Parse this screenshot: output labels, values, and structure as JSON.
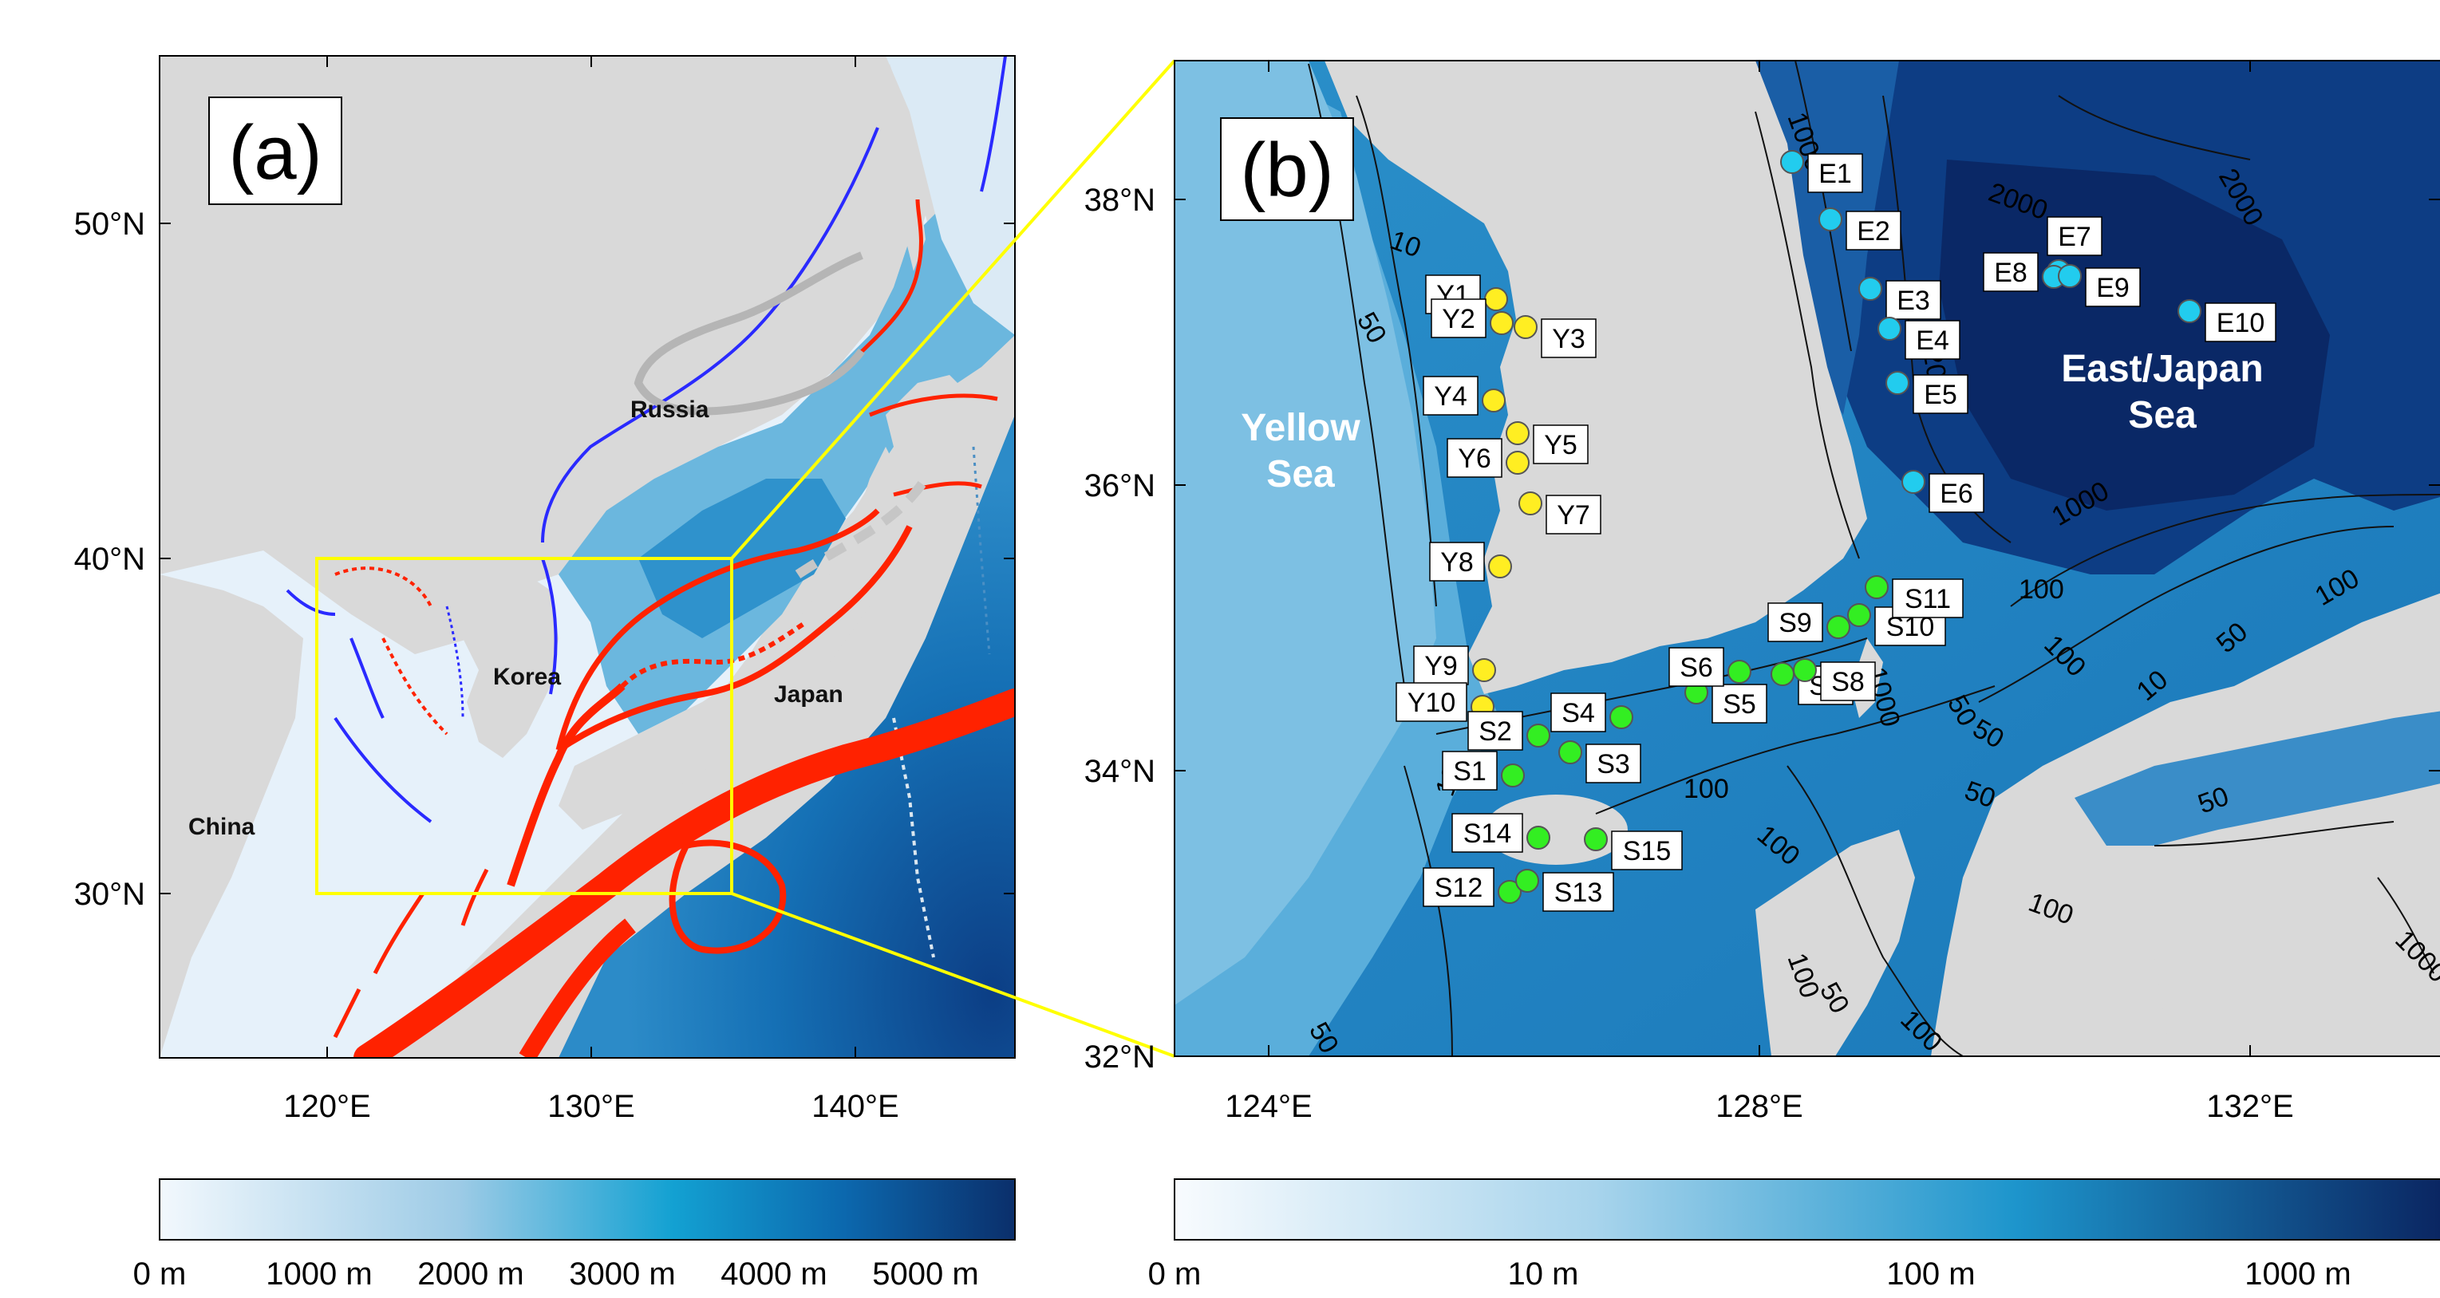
{
  "panel_a": {
    "label": "(a)",
    "lat_ticks": [
      "30°N",
      "40°N",
      "50°N"
    ],
    "lon_ticks": [
      "120°E",
      "130°E",
      "140°E"
    ],
    "region_labels": [
      "Russia",
      "Korea",
      "Japan",
      "China"
    ],
    "colorbar_ticks": [
      "0 m",
      "1000 m",
      "2000 m",
      "3000 m",
      "4000 m",
      "5000 m"
    ]
  },
  "panel_b": {
    "label": "(b)",
    "lat_ticks": [
      "32°N",
      "34°N",
      "36°N",
      "38°N"
    ],
    "lon_ticks": [
      "124°E",
      "128°E",
      "132°E"
    ],
    "sea_labels": [
      [
        "Yellow",
        "Sea"
      ],
      [
        "East/Japan",
        "Sea"
      ]
    ],
    "colorbar_ticks": [
      "0 m",
      "10 m",
      "100 m",
      "1000 m"
    ],
    "contour_labels": [
      "1000",
      "2000",
      "2000",
      "2000",
      "2000",
      "1000",
      "100",
      "1000",
      "10",
      "50",
      "100",
      "100",
      "50",
      "50",
      "100",
      "10",
      "50",
      "100",
      "1000",
      "50",
      "100",
      "50",
      "100",
      "100",
      "100",
      "50",
      "100",
      "50"
    ],
    "stations": {
      "Y": [
        "Y1",
        "Y2",
        "Y3",
        "Y4",
        "Y5",
        "Y6",
        "Y7",
        "Y8",
        "Y9",
        "Y10"
      ],
      "S": [
        "S1",
        "S2",
        "S3",
        "S4",
        "S5",
        "S6",
        "S7",
        "S8",
        "S9",
        "S10",
        "S11",
        "S12",
        "S13",
        "S14",
        "S15"
      ],
      "E": [
        "E1",
        "E2",
        "E3",
        "E4",
        "E5",
        "E6",
        "E7",
        "E8",
        "E9",
        "E10"
      ]
    }
  },
  "colors": {
    "land": "#d9d9d9",
    "warm_current": "#ff2200",
    "cold_current": "#2a2aff",
    "gray_current": "#b5b5b5",
    "inset_box": "#ffff00",
    "station_Y": "#ffee22",
    "station_S": "#33ee22",
    "station_E": "#22ccee"
  }
}
